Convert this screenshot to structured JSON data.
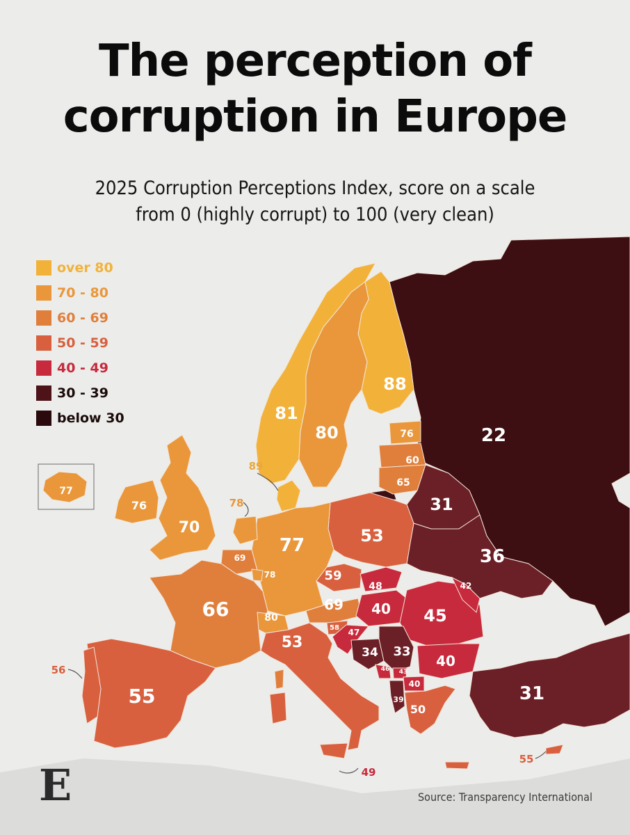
{
  "header": {
    "title_line1": "The perception of",
    "title_line2": "corruption in Europe",
    "subtitle_line1": "2025 Corruption Perceptions Index, score on a scale",
    "subtitle_line2": "from 0 (highly corrupt) to 100 (very clean)"
  },
  "legend": [
    {
      "label": "over 80",
      "color": "#f2b23a"
    },
    {
      "label": "70 - 80",
      "color": "#e9973a"
    },
    {
      "label": "60 - 69",
      "color": "#e07f3c"
    },
    {
      "label": "50 - 59",
      "color": "#d8603f"
    },
    {
      "label": "40 - 49",
      "color": "#c72a3c"
    },
    {
      "label": "30 - 39",
      "color": "#4e1219"
    },
    {
      "label": "below 30",
      "color": "#2a0a0c"
    }
  ],
  "map_data": {
    "type": "choropleth",
    "colors": {
      "over80": "#f2b23a",
      "s70_80": "#e9973a",
      "s60_69": "#e07f3c",
      "s50_59": "#d8603f",
      "s40_49": "#c72a3c",
      "s30_39": "#6b1f26",
      "below30": "#3d0e12",
      "sea": "#ececea",
      "land_outside": "#dcdcda",
      "border": "#f3e6da"
    },
    "scores": {
      "Russia": "22",
      "Finland": "88",
      "Norway": "81",
      "Sweden": "80",
      "Denmark": "89",
      "Estonia": "76",
      "Latvia": "60",
      "Lithuania": "65",
      "Belarus": "31",
      "Ukraine": "36",
      "Poland": "53",
      "Germany": "77",
      "Netherlands": "78",
      "Belgium": "69",
      "Luxembourg": "78",
      "France": "66",
      "Switzerland": "80",
      "Austria": "69",
      "Czechia": "59",
      "Slovakia": "48",
      "Hungary": "40",
      "Romania": "45",
      "Moldova": "42",
      "Bulgaria": "40",
      "Slovenia": "58",
      "Croatia": "47",
      "Bosnia": "34",
      "Serbia": "33",
      "Montenegro": "46",
      "Kosovo": "43",
      "North Macedonia": "40",
      "Albania": "39",
      "Greece": "50",
      "Turkey": "31",
      "Cyprus": "55",
      "Italy": "53",
      "Malta": "49",
      "Spain": "55",
      "Portugal": "56",
      "United Kingdom": "70",
      "Ireland": "76",
      "Iceland": "77"
    }
  },
  "footer": {
    "source": "Source: Transparency International",
    "logo": "E"
  }
}
